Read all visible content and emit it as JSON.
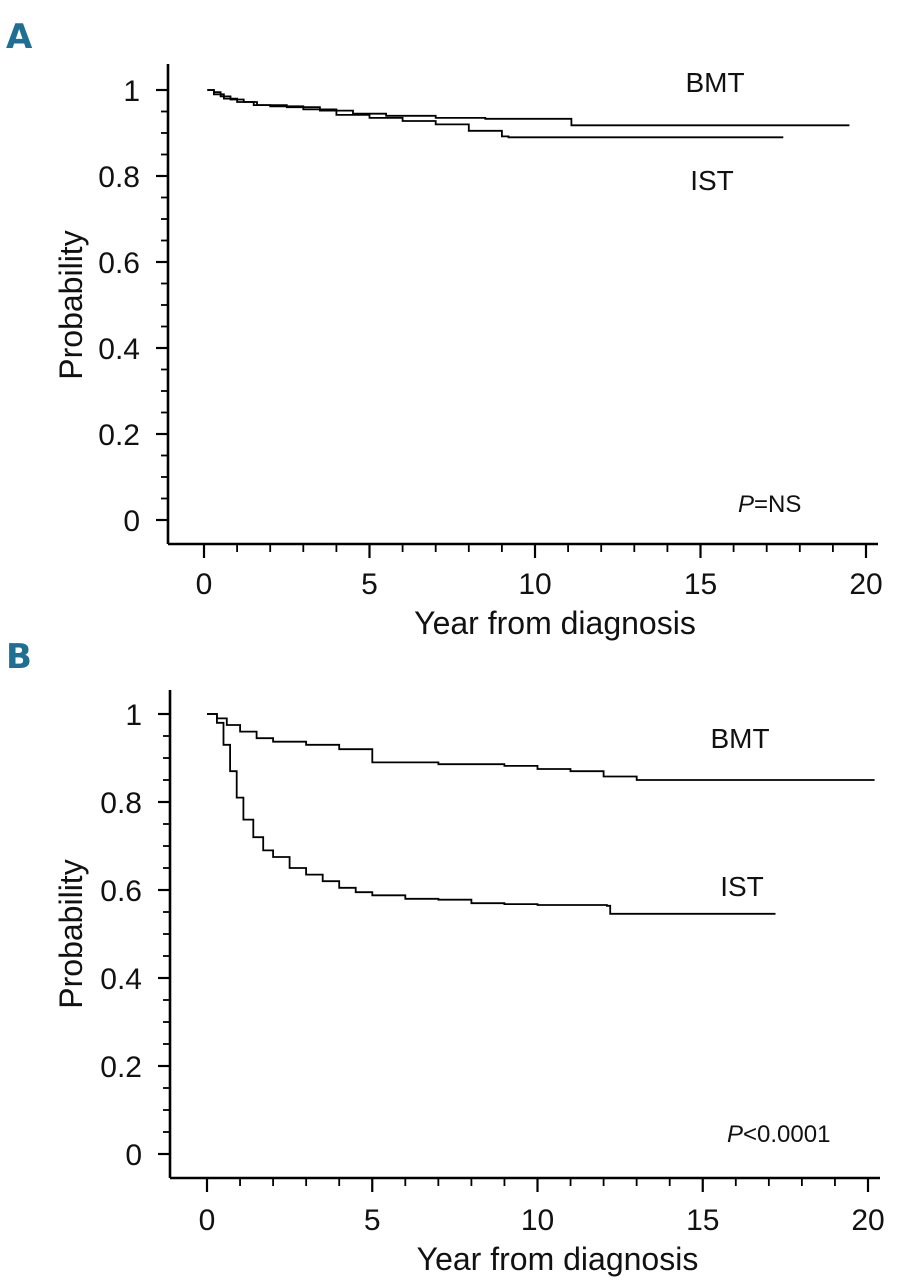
{
  "chart_data": [
    {
      "type": "line",
      "panel_label": "A",
      "xlabel": "Year from diagnosis",
      "ylabel": "Probability",
      "xlim": [
        0,
        20
      ],
      "ylim": [
        0,
        1
      ],
      "x_ticks": [
        "0",
        "5",
        "10",
        "15",
        "20"
      ],
      "y_ticks": [
        "0",
        "0.2",
        "0.4",
        "0.6",
        "0.8",
        "1"
      ],
      "annotation": {
        "prefix": "P",
        "text": "=NS"
      },
      "series": [
        {
          "name": "BMT",
          "points": [
            [
              0.1,
              1.0
            ],
            [
              0.3,
              0.995
            ],
            [
              0.5,
              0.985
            ],
            [
              0.8,
              0.978
            ],
            [
              1.2,
              0.972
            ],
            [
              1.6,
              0.965
            ],
            [
              2.5,
              0.96
            ],
            [
              3.5,
              0.952
            ],
            [
              4.5,
              0.945
            ],
            [
              5.5,
              0.94
            ],
            [
              7.0,
              0.935
            ],
            [
              8.5,
              0.933
            ],
            [
              11.1,
              0.933
            ],
            [
              11.1,
              0.918
            ],
            [
              15.0,
              0.918
            ],
            [
              19.5,
              0.918
            ]
          ]
        },
        {
          "name": "IST",
          "points": [
            [
              0.1,
              1.0
            ],
            [
              0.3,
              0.99
            ],
            [
              0.6,
              0.98
            ],
            [
              1.0,
              0.972
            ],
            [
              1.5,
              0.965
            ],
            [
              2.0,
              0.962
            ],
            [
              3.0,
              0.955
            ],
            [
              4.0,
              0.942
            ],
            [
              5.0,
              0.935
            ],
            [
              6.0,
              0.928
            ],
            [
              7.0,
              0.92
            ],
            [
              8.0,
              0.905
            ],
            [
              9.0,
              0.892
            ],
            [
              9.2,
              0.89
            ],
            [
              12.0,
              0.89
            ],
            [
              15.0,
              0.89
            ],
            [
              17.5,
              0.89
            ]
          ]
        }
      ]
    },
    {
      "type": "line",
      "panel_label": "B",
      "xlabel": "Year from diagnosis",
      "ylabel": "Probability",
      "xlim": [
        0,
        20
      ],
      "ylim": [
        0,
        1
      ],
      "x_ticks": [
        "0",
        "5",
        "10",
        "15",
        "20"
      ],
      "y_ticks": [
        "0",
        "0.2",
        "0.4",
        "0.6",
        "0.8",
        "1"
      ],
      "annotation": {
        "prefix": "P",
        "text": "<0.0001"
      },
      "series": [
        {
          "name": "BMT",
          "points": [
            [
              0.0,
              1.0
            ],
            [
              0.3,
              0.99
            ],
            [
              0.6,
              0.975
            ],
            [
              1.0,
              0.96
            ],
            [
              1.5,
              0.945
            ],
            [
              2.0,
              0.937
            ],
            [
              3.0,
              0.93
            ],
            [
              4.0,
              0.92
            ],
            [
              5.0,
              0.89
            ],
            [
              7.0,
              0.886
            ],
            [
              9.0,
              0.882
            ],
            [
              10.0,
              0.875
            ],
            [
              11.0,
              0.87
            ],
            [
              12.0,
              0.858
            ],
            [
              13.0,
              0.85
            ],
            [
              15.0,
              0.85
            ],
            [
              18.0,
              0.85
            ],
            [
              20.2,
              0.85
            ]
          ]
        },
        {
          "name": "IST",
          "points": [
            [
              0.0,
              1.0
            ],
            [
              0.3,
              0.98
            ],
            [
              0.5,
              0.93
            ],
            [
              0.7,
              0.87
            ],
            [
              0.9,
              0.81
            ],
            [
              1.1,
              0.76
            ],
            [
              1.4,
              0.72
            ],
            [
              1.7,
              0.69
            ],
            [
              2.0,
              0.675
            ],
            [
              2.5,
              0.65
            ],
            [
              3.0,
              0.635
            ],
            [
              3.5,
              0.62
            ],
            [
              4.0,
              0.605
            ],
            [
              4.5,
              0.595
            ],
            [
              5.0,
              0.588
            ],
            [
              6.0,
              0.58
            ],
            [
              7.0,
              0.578
            ],
            [
              8.0,
              0.57
            ],
            [
              9.0,
              0.568
            ],
            [
              10.0,
              0.566
            ],
            [
              12.1,
              0.564
            ],
            [
              12.2,
              0.546
            ],
            [
              15.0,
              0.546
            ],
            [
              17.2,
              0.546
            ]
          ]
        }
      ]
    }
  ]
}
